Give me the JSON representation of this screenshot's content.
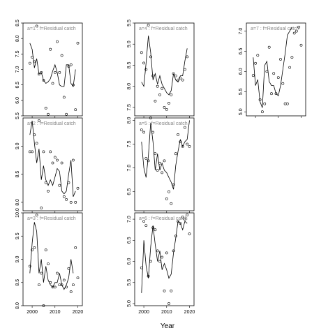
{
  "chart_data": {
    "type": "line",
    "xlabel": "Year",
    "xlim": [
      1996,
      2022
    ],
    "xticks": [
      2000,
      2010,
      2020
    ],
    "xtick_labels": [
      "2000",
      "2010",
      "2020"
    ],
    "x": [
      1999,
      2000,
      2001,
      2002,
      2003,
      2004,
      2005,
      2006,
      2007,
      2008,
      2009,
      2010,
      2011,
      2012,
      2013,
      2014,
      2015,
      2016,
      2017,
      2018,
      2019,
      2020,
      2021
    ],
    "line_color": "#000000",
    "strip_text_color": "#888888",
    "panels": [
      {
        "label": "a=1 : f=Residual catch",
        "grid_col": 0,
        "grid_row": 0,
        "ylim": [
          5.5,
          8.5
        ],
        "yticks": [
          5.5,
          6.0,
          6.5,
          7.0,
          7.5,
          8.0,
          8.5
        ],
        "ytick_labels": [
          "5.5",
          "6.0",
          "6.5",
          "7.0",
          "7.5",
          "8.0",
          "8.5"
        ],
        "line": [
          7.85,
          7.65,
          7.05,
          7.35,
          6.85,
          6.9,
          6.65,
          6.55,
          6.6,
          6.7,
          6.95,
          7.15,
          6.9,
          6.5,
          6.45,
          6.45,
          7.15,
          7.15,
          6.55,
          6.45,
          7.0
        ],
        "points": [
          [
            1999,
            7.2
          ],
          [
            2000,
            7.4
          ],
          [
            2001,
            7.25
          ],
          [
            2002,
            8.4
          ],
          [
            2003,
            6.85
          ],
          [
            2004,
            6.9
          ],
          [
            2005,
            6.65
          ],
          [
            2006,
            5.75
          ],
          [
            2007,
            5.55
          ],
          [
            2008,
            7.65
          ],
          [
            2009,
            6.55
          ],
          [
            2010,
            6.9
          ],
          [
            2011,
            7.9
          ],
          [
            2012,
            6.9
          ],
          [
            2013,
            7.45
          ],
          [
            2014,
            6.1
          ],
          [
            2015,
            5.55
          ],
          [
            2016,
            7.1
          ],
          [
            2017,
            7.15
          ],
          [
            2018,
            6.5
          ],
          [
            2019,
            5.7
          ],
          [
            2020,
            7.85
          ]
        ]
      },
      {
        "label": "a=2 : f=Residual catch",
        "grid_col": 0,
        "grid_row": 1,
        "ylim": [
          7.85,
          9.5
        ],
        "yticks": [
          8.0,
          8.5,
          9.0
        ],
        "ytick_labels": [
          "8.0",
          "8.5",
          "9.0"
        ],
        "line": [
          9.2,
          9.45,
          9.05,
          8.7,
          8.95,
          8.4,
          8.65,
          8.4,
          8.3,
          8.4,
          8.3,
          8.45,
          8.6,
          8.55,
          8.2,
          8.15,
          8.2,
          8.5,
          8.75,
          8.1,
          8.2
        ],
        "points": [
          [
            1999,
            8.9
          ],
          [
            2000,
            8.9
          ],
          [
            2001,
            9.2
          ],
          [
            2002,
            9.05
          ],
          [
            2003,
            9.45
          ],
          [
            2004,
            7.9
          ],
          [
            2005,
            8.9
          ],
          [
            2006,
            8.35
          ],
          [
            2007,
            8.2
          ],
          [
            2008,
            8.9
          ],
          [
            2009,
            8.7
          ],
          [
            2010,
            8.8
          ],
          [
            2011,
            8.75
          ],
          [
            2012,
            8.3
          ],
          [
            2013,
            8.7
          ],
          [
            2014,
            8.1
          ],
          [
            2015,
            8.05
          ],
          [
            2016,
            8.35
          ],
          [
            2017,
            8.0
          ],
          [
            2018,
            8.75
          ],
          [
            2019,
            8.0
          ],
          [
            2020,
            8.25
          ]
        ]
      },
      {
        "label": "a=3 : f=Residual catch",
        "grid_col": 0,
        "grid_row": 2,
        "ylim": [
          8.0,
          10.0
        ],
        "yticks": [
          8.0,
          8.5,
          9.0,
          9.5,
          10.0
        ],
        "ytick_labels": [
          "8.0",
          "8.5",
          "9.0",
          "9.5",
          "10.0"
        ],
        "line": [
          8.7,
          9.35,
          9.8,
          9.6,
          8.7,
          9.0,
          8.5,
          8.85,
          8.55,
          8.45,
          8.4,
          8.5,
          8.5,
          8.7,
          8.45,
          8.35,
          8.45,
          8.6,
          9.0,
          8.7
        ],
        "points": [
          [
            1999,
            8.85
          ],
          [
            2000,
            9.2
          ],
          [
            2001,
            9.25
          ],
          [
            2002,
            9.95
          ],
          [
            2003,
            8.45
          ],
          [
            2004,
            8.7
          ],
          [
            2005,
            8.0
          ],
          [
            2006,
            9.2
          ],
          [
            2007,
            8.9
          ],
          [
            2008,
            8.5
          ],
          [
            2009,
            8.4
          ],
          [
            2010,
            8.4
          ],
          [
            2011,
            8.7
          ],
          [
            2012,
            8.45
          ],
          [
            2013,
            8.45
          ],
          [
            2014,
            8.55
          ],
          [
            2015,
            8.4
          ],
          [
            2016,
            8.8
          ],
          [
            2017,
            8.3
          ],
          [
            2018,
            8.45
          ],
          [
            2019,
            9.25
          ],
          [
            2020,
            8.6
          ]
        ]
      },
      {
        "label": "a=4 : f=Residual catch",
        "grid_col": 1,
        "grid_row": 0,
        "ylim": [
          7.3,
          9.5
        ],
        "yticks": [
          7.5,
          8.0,
          8.5,
          9.0,
          9.5
        ],
        "ytick_labels": [
          "7.5",
          "8.0",
          "8.5",
          "9.0",
          "9.5"
        ],
        "line": [
          8.1,
          8.0,
          8.55,
          9.2,
          8.8,
          8.15,
          8.3,
          8.05,
          8.25,
          8.05,
          7.95,
          7.85,
          7.8,
          7.9,
          8.3,
          8.15,
          8.1,
          8.25,
          8.25,
          8.6,
          8.9
        ],
        "points": [
          [
            1999,
            8.8
          ],
          [
            2000,
            8.55
          ],
          [
            2001,
            8.4
          ],
          [
            2002,
            9.45
          ],
          [
            2003,
            8.7
          ],
          [
            2004,
            8.25
          ],
          [
            2005,
            7.65
          ],
          [
            2006,
            8.0
          ],
          [
            2007,
            7.8
          ],
          [
            2008,
            7.95
          ],
          [
            2009,
            7.5
          ],
          [
            2010,
            7.45
          ],
          [
            2011,
            7.6
          ],
          [
            2012,
            7.8
          ],
          [
            2013,
            8.3
          ],
          [
            2014,
            8.25
          ],
          [
            2015,
            8.15
          ],
          [
            2016,
            8.2
          ],
          [
            2017,
            8.15
          ],
          [
            2018,
            8.4
          ],
          [
            2019,
            8.7
          ]
        ]
      },
      {
        "label": "a=5 : f=Residual catch",
        "grid_col": 1,
        "grid_row": 1,
        "ylim": [
          6.1,
          8.05
        ],
        "yticks": [
          6.5,
          7.0,
          7.5,
          8.0
        ],
        "ytick_labels": [
          "6.5",
          "7.0",
          "7.5",
          "8.0"
        ],
        "line": [
          7.55,
          7.0,
          6.8,
          7.25,
          7.95,
          7.55,
          6.95,
          7.3,
          6.95,
          7.1,
          6.95,
          6.9,
          6.8,
          6.7,
          6.55,
          7.05,
          7.35,
          7.6,
          7.45,
          7.55,
          7.6,
          8.0
        ],
        "points": [
          [
            1999,
            7.8
          ],
          [
            2000,
            7.75
          ],
          [
            2001,
            7.2
          ],
          [
            2002,
            7.15
          ],
          [
            2003,
            8.05
          ],
          [
            2004,
            7.75
          ],
          [
            2005,
            7.3
          ],
          [
            2006,
            6.95
          ],
          [
            2007,
            7.1
          ],
          [
            2008,
            6.9
          ],
          [
            2009,
            7.15
          ],
          [
            2010,
            6.35
          ],
          [
            2011,
            6.5
          ],
          [
            2012,
            6.25
          ],
          [
            2013,
            6.65
          ],
          [
            2014,
            7.3
          ],
          [
            2015,
            7.7
          ],
          [
            2016,
            7.55
          ],
          [
            2017,
            7.45
          ],
          [
            2018,
            7.85
          ],
          [
            2019,
            7.5
          ],
          [
            2020,
            7.45
          ]
        ]
      },
      {
        "label": "a=6 : f=Residual catch",
        "grid_col": 1,
        "grid_row": 2,
        "ylim": [
          4.95,
          7.15
        ],
        "yticks": [
          5.0,
          5.5,
          6.0,
          6.5,
          7.0
        ],
        "ytick_labels": [
          "5.0",
          "5.5",
          "6.0",
          "6.5",
          "7.0"
        ],
        "line": [
          5.25,
          6.5,
          5.9,
          5.6,
          6.35,
          6.85,
          6.4,
          6.0,
          6.25,
          5.8,
          5.95,
          5.8,
          5.6,
          5.7,
          6.2,
          6.55,
          6.95,
          6.9,
          6.75,
          6.95,
          6.9
        ],
        "points": [
          [
            1999,
            5.85
          ],
          [
            2000,
            6.95
          ],
          [
            2001,
            6.85
          ],
          [
            2002,
            5.65
          ],
          [
            2003,
            6.0
          ],
          [
            2004,
            6.8
          ],
          [
            2005,
            6.75
          ],
          [
            2006,
            6.25
          ],
          [
            2007,
            6.0
          ],
          [
            2008,
            6.1
          ],
          [
            2009,
            5.3
          ],
          [
            2010,
            6.2
          ],
          [
            2011,
            5.0
          ],
          [
            2012,
            5.3
          ],
          [
            2013,
            6.25
          ],
          [
            2014,
            6.6
          ],
          [
            2015,
            6.95
          ],
          [
            2016,
            6.9
          ],
          [
            2017,
            7.05
          ],
          [
            2018,
            7.0
          ],
          [
            2019,
            7.1
          ],
          [
            2020,
            6.65
          ]
        ]
      },
      {
        "label": "a=7 : f=Residual catch",
        "grid_col": 2,
        "grid_row": 0,
        "ylim": [
          4.9,
          7.2
        ],
        "yticks": [
          5.0,
          5.5,
          6.0,
          6.5,
          7.0
        ],
        "ytick_labels": [
          "5.0",
          "5.5",
          "6.0",
          "6.5",
          "7.0"
        ],
        "line": [
          6.35,
          5.65,
          5.8,
          5.25,
          5.1,
          6.15,
          6.25,
          5.75,
          5.65,
          5.65,
          5.45,
          5.4,
          5.65,
          6.05,
          6.45,
          6.9,
          7.0,
          7.1
        ],
        "points": [
          [
            1999,
            5.9
          ],
          [
            2000,
            6.2
          ],
          [
            2001,
            6.4
          ],
          [
            2002,
            5.3
          ],
          [
            2003,
            5.0
          ],
          [
            2004,
            5.2
          ],
          [
            2005,
            6.0
          ],
          [
            2006,
            6.6
          ],
          [
            2007,
            5.45
          ],
          [
            2008,
            5.95
          ],
          [
            2009,
            5.45
          ],
          [
            2010,
            5.85
          ],
          [
            2011,
            6.3
          ],
          [
            2012,
            5.7
          ],
          [
            2013,
            5.2
          ],
          [
            2014,
            5.2
          ],
          [
            2015,
            6.1
          ],
          [
            2016,
            6.35
          ],
          [
            2017,
            6.95
          ],
          [
            2018,
            7.0
          ],
          [
            2019,
            7.1
          ],
          [
            2020,
            6.65
          ]
        ]
      }
    ]
  }
}
